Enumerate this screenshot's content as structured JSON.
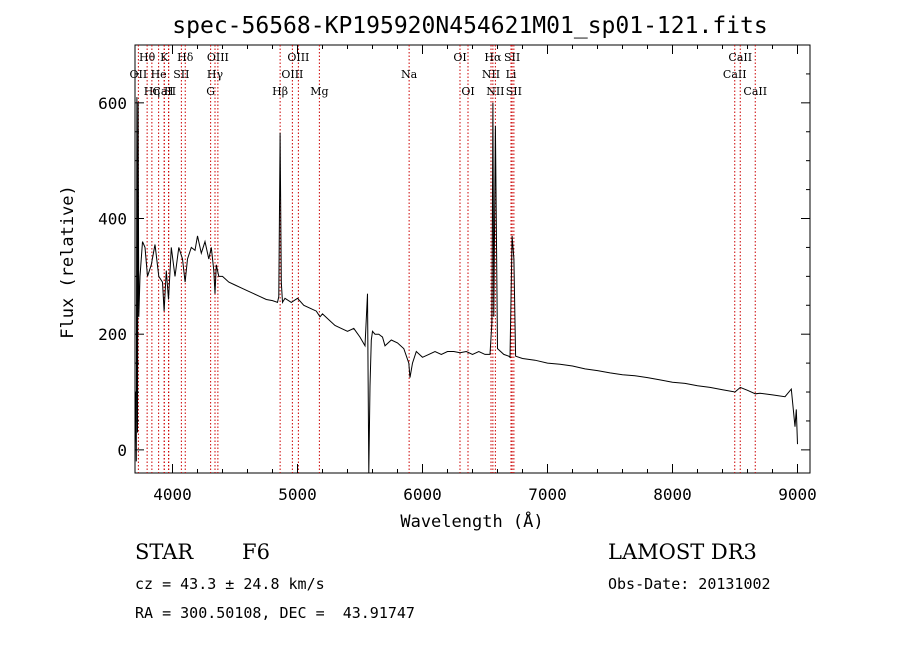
{
  "chart_data": {
    "type": "line",
    "title": "spec-56568-KP195920N454621M01_sp01-121.fits",
    "xlabel": "Wavelength (Å)",
    "ylabel": "Flux (relative)",
    "xlim": [
      3700,
      9100
    ],
    "ylim": [
      -40,
      700
    ],
    "x_ticks": [
      4000,
      5000,
      6000,
      7000,
      8000,
      9000
    ],
    "y_ticks": [
      0,
      200,
      400,
      600
    ],
    "series": [
      {
        "name": "spectrum",
        "x": [
          3700,
          3705,
          3710,
          3715,
          3720,
          3725,
          3730,
          3740,
          3760,
          3780,
          3800,
          3830,
          3860,
          3890,
          3920,
          3933,
          3950,
          3968,
          3990,
          4020,
          4050,
          4080,
          4101,
          4120,
          4150,
          4180,
          4200,
          4230,
          4260,
          4290,
          4310,
          4330,
          4340,
          4350,
          4370,
          4400,
          4450,
          4500,
          4550,
          4600,
          4650,
          4700,
          4750,
          4800,
          4840,
          4850,
          4861,
          4870,
          4880,
          4900,
          4950,
          5000,
          5050,
          5100,
          5150,
          5180,
          5200,
          5250,
          5300,
          5350,
          5400,
          5450,
          5500,
          5540,
          5560,
          5570,
          5580,
          5590,
          5600,
          5620,
          5650,
          5680,
          5700,
          5750,
          5800,
          5850,
          5890,
          5900,
          5920,
          5950,
          6000,
          6050,
          6100,
          6150,
          6200,
          6250,
          6300,
          6350,
          6400,
          6450,
          6500,
          6540,
          6555,
          6563,
          6570,
          6583,
          6600,
          6650,
          6690,
          6700,
          6717,
          6731,
          6745,
          6800,
          6900,
          7000,
          7100,
          7200,
          7300,
          7400,
          7500,
          7600,
          7700,
          7800,
          7900,
          8000,
          8100,
          8200,
          8300,
          8400,
          8500,
          8542,
          8600,
          8662,
          8700,
          8800,
          8900,
          8950,
          8980,
          8990,
          9000
        ],
        "values": [
          10,
          100,
          -20,
          610,
          30,
          600,
          230,
          300,
          360,
          350,
          300,
          320,
          355,
          300,
          290,
          240,
          310,
          260,
          350,
          300,
          350,
          330,
          290,
          330,
          350,
          345,
          370,
          340,
          360,
          330,
          350,
          310,
          270,
          320,
          300,
          300,
          290,
          285,
          280,
          275,
          270,
          265,
          260,
          258,
          255,
          265,
          548,
          290,
          255,
          262,
          255,
          262,
          250,
          245,
          240,
          230,
          235,
          225,
          215,
          210,
          205,
          210,
          195,
          180,
          270,
          -40,
          110,
          190,
          205,
          200,
          200,
          195,
          180,
          190,
          185,
          175,
          150,
          125,
          150,
          170,
          160,
          165,
          170,
          165,
          170,
          170,
          168,
          170,
          165,
          170,
          165,
          165,
          220,
          600,
          230,
          560,
          175,
          165,
          162,
          160,
          370,
          330,
          162,
          158,
          155,
          150,
          148,
          145,
          140,
          137,
          133,
          130,
          128,
          125,
          121,
          117,
          115,
          111,
          108,
          104,
          100,
          108,
          103,
          97,
          98,
          95,
          92,
          105,
          40,
          70,
          10
        ]
      }
    ],
    "lines": [
      {
        "name": "CaII",
        "x": 3934
      },
      {
        "name": "H",
        "x": 3970
      },
      {
        "name": "CaII",
        "x": 3968
      },
      {
        "name": "OII",
        "x": 3727
      },
      {
        "name": "Hθ",
        "x": 3797
      },
      {
        "name": "Hη",
        "x": 3835
      },
      {
        "name": "He",
        "x": 3889
      },
      {
        "name": "K",
        "x": 3934
      },
      {
        "name": "SII",
        "x": 4071
      },
      {
        "name": "Hδ",
        "x": 4102
      },
      {
        "name": "G",
        "x": 4305
      },
      {
        "name": "Hγ",
        "x": 4340
      },
      {
        "name": "OIII",
        "x": 4363
      },
      {
        "name": "Hβ",
        "x": 4861
      },
      {
        "name": "OIII",
        "x": 4959
      },
      {
        "name": "OIII",
        "x": 5007
      },
      {
        "name": "Mg",
        "x": 5175
      },
      {
        "name": "Na",
        "x": 5893
      },
      {
        "name": "OI",
        "x": 6300
      },
      {
        "name": "OI",
        "x": 6364
      },
      {
        "name": "NII",
        "x": 6548
      },
      {
        "name": "Hα",
        "x": 6563
      },
      {
        "name": "NII",
        "x": 6583
      },
      {
        "name": "Li",
        "x": 6708
      },
      {
        "name": "SII",
        "x": 6717
      },
      {
        "name": "SII",
        "x": 6731
      },
      {
        "name": "CaII",
        "x": 8498
      },
      {
        "name": "CaII",
        "x": 8542
      },
      {
        "name": "CaII",
        "x": 8662
      }
    ]
  },
  "line_labels": {
    "row1": [
      {
        "text": "Hθ",
        "x": 3797
      },
      {
        "text": "K",
        "x": 3934
      },
      {
        "text": "Hδ",
        "x": 4102
      },
      {
        "text": "OIII",
        "x": 4363
      },
      {
        "text": "OIII",
        "x": 5007
      },
      {
        "text": "OI",
        "x": 6300
      },
      {
        "text": "Hα",
        "x": 6563
      },
      {
        "text": "SII",
        "x": 6717
      },
      {
        "text": "CaII",
        "x": 8542
      }
    ],
    "row2": [
      {
        "text": "OII",
        "x": 3727
      },
      {
        "text": "He",
        "x": 3889
      },
      {
        "text": "SII",
        "x": 4071
      },
      {
        "text": "Hγ",
        "x": 4340
      },
      {
        "text": "OIII",
        "x": 4959
      },
      {
        "text": "Na",
        "x": 5893
      },
      {
        "text": "NII",
        "x": 6548
      },
      {
        "text": "Li",
        "x": 6708
      },
      {
        "text": "CaII",
        "x": 8498
      }
    ],
    "row3": [
      {
        "text": "CaII",
        "x": 3934
      },
      {
        "text": "Hη",
        "x": 3835
      },
      {
        "text": "H",
        "x": 3970
      },
      {
        "text": "G",
        "x": 4305
      },
      {
        "text": "Hβ",
        "x": 4861
      },
      {
        "text": "Mg",
        "x": 5175
      },
      {
        "text": "OI",
        "x": 6364
      },
      {
        "text": "NII",
        "x": 6583
      },
      {
        "text": "SII",
        "x": 6731
      },
      {
        "text": "CaII",
        "x": 8662
      }
    ]
  },
  "info": {
    "object_class": "STAR",
    "subclass": "F6",
    "survey": "LAMOST DR3",
    "cz": "cz = 43.3 ± 24.8 km/s",
    "obs_date": "Obs-Date: 20131002",
    "coords": "RA = 300.50108, DEC =  43.91747"
  }
}
